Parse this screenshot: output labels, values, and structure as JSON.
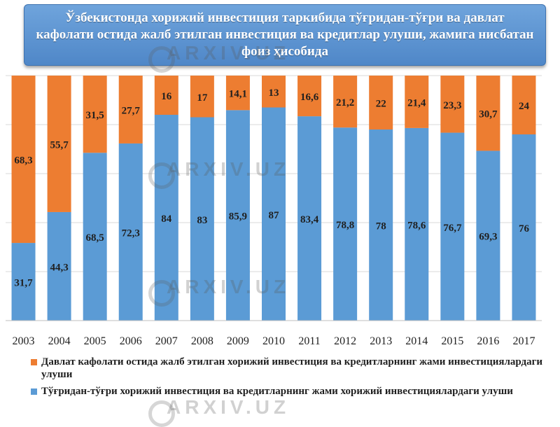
{
  "watermark": "ARXIV.UZ",
  "chart_data": {
    "type": "bar",
    "stacked": true,
    "title": "Ўзбекистонда хорижий инвестиция таркибида тўғридан-тўғри ва давлат кафолати остида жалб этилган инвестиция ва кредитлар улуши, жамига нисбатан фоиз ҳисобида",
    "categories": [
      "2003",
      "2004",
      "2005",
      "2006",
      "2007",
      "2008",
      "2009",
      "2010",
      "2011",
      "2012",
      "2013",
      "2014",
      "2015",
      "2016",
      "2017"
    ],
    "value_labels": {
      "direct": [
        "31,7",
        "44,3",
        "68,5",
        "72,3",
        "84",
        "83",
        "85,9",
        "87",
        "83,4",
        "78,8",
        "78",
        "78,6",
        "76,7",
        "69,3",
        "76"
      ],
      "guaranteed": [
        "68,3",
        "55,7",
        "31,5",
        "27,7",
        "16",
        "17",
        "14,1",
        "13",
        "16,6",
        "21,2",
        "22",
        "21,4",
        "23,3",
        "30,7",
        "24"
      ]
    },
    "series": [
      {
        "key": "direct",
        "name": "Тўғридан-тўғри хорижий инвестиция ва кредитларнинг жами хорижий инвестициялардаги улуши",
        "color": "#5b9bd5",
        "values": [
          31.7,
          44.3,
          68.5,
          72.3,
          84,
          83,
          85.9,
          87,
          83.4,
          78.8,
          78,
          78.6,
          76.7,
          69.3,
          76
        ]
      },
      {
        "key": "guaranteed",
        "name": "Давлат кафолати остида жалб этилган хорижий инвестиция ва кредитларнинг жами инвестициялардаги улуши",
        "color": "#ed7d31",
        "values": [
          68.3,
          55.7,
          31.5,
          27.7,
          16,
          17,
          14.1,
          13,
          16.6,
          21.2,
          22,
          21.4,
          23.3,
          30.7,
          24
        ]
      }
    ],
    "ylim": [
      0,
      100
    ],
    "grid": true,
    "legend_position": "bottom"
  }
}
